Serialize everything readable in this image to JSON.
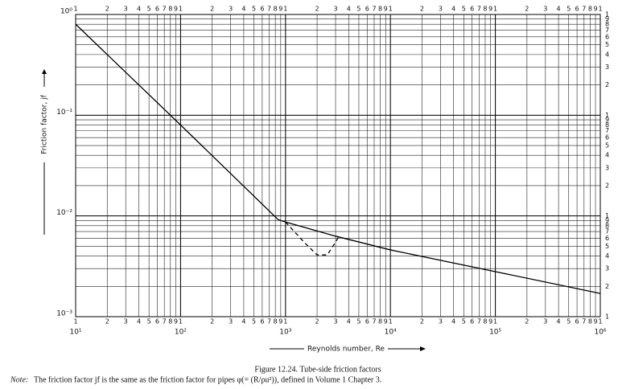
{
  "chart_data": {
    "type": "line",
    "xlabel": "Reynolds number, Re",
    "ylabel": "Friction factor, jf",
    "caption": "Figure 12.24.   Tube-side friction factors",
    "note_label": "Note:",
    "note": "The friction factor jf is the same as the friction factor for pipes φ(= (R/ρu²)), defined in Volume 1 Chapter 3.",
    "xlog": true,
    "ylog": true,
    "grid": true,
    "xlim": [
      10,
      1000000
    ],
    "ylim": [
      0.001,
      1
    ],
    "xticks": [
      {
        "value": 10,
        "label": "10¹"
      },
      {
        "value": 100,
        "label": "10²"
      },
      {
        "value": 1000,
        "label": "10³"
      },
      {
        "value": 10000,
        "label": "10⁴"
      },
      {
        "value": 100000,
        "label": "10⁵"
      },
      {
        "value": 1000000,
        "label": "10⁶"
      }
    ],
    "yticks": [
      {
        "value": 0.001,
        "label": "10⁻³"
      },
      {
        "value": 0.01,
        "label": "10⁻²"
      },
      {
        "value": 0.1,
        "label": "10⁻¹"
      },
      {
        "value": 1,
        "label": "10⁰"
      }
    ],
    "xminor": [
      {
        "value": 10,
        "label": "1"
      },
      {
        "value": 20,
        "label": "2"
      },
      {
        "value": 30,
        "label": "3"
      },
      {
        "value": 40,
        "label": "4"
      },
      {
        "value": 50,
        "label": "5"
      },
      {
        "value": 60,
        "label": "6"
      },
      {
        "value": 70,
        "label": "7"
      },
      {
        "value": 80,
        "label": "8"
      },
      {
        "value": 90,
        "label": "9"
      },
      {
        "value": 100,
        "label": "1"
      },
      {
        "value": 200,
        "label": "2"
      },
      {
        "value": 300,
        "label": "3"
      },
      {
        "value": 400,
        "label": "4"
      },
      {
        "value": 500,
        "label": "5"
      },
      {
        "value": 600,
        "label": "6"
      },
      {
        "value": 700,
        "label": "7"
      },
      {
        "value": 800,
        "label": "8"
      },
      {
        "value": 900,
        "label": "9"
      },
      {
        "value": 1000,
        "label": "1"
      },
      {
        "value": 2000,
        "label": "2"
      },
      {
        "value": 3000,
        "label": "3"
      },
      {
        "value": 4000,
        "label": "4"
      },
      {
        "value": 5000,
        "label": "5"
      },
      {
        "value": 6000,
        "label": "6"
      },
      {
        "value": 7000,
        "label": "7"
      },
      {
        "value": 8000,
        "label": "8"
      },
      {
        "value": 9000,
        "label": "9"
      },
      {
        "value": 10000,
        "label": "1"
      },
      {
        "value": 20000,
        "label": "2"
      },
      {
        "value": 30000,
        "label": "3"
      },
      {
        "value": 40000,
        "label": "4"
      },
      {
        "value": 50000,
        "label": "5"
      },
      {
        "value": 60000,
        "label": "6"
      },
      {
        "value": 70000,
        "label": "7"
      },
      {
        "value": 80000,
        "label": "8"
      },
      {
        "value": 90000,
        "label": "9"
      },
      {
        "value": 100000,
        "label": "1"
      },
      {
        "value": 200000,
        "label": "2"
      },
      {
        "value": 300000,
        "label": "3"
      },
      {
        "value": 400000,
        "label": "4"
      },
      {
        "value": 500000,
        "label": "5"
      },
      {
        "value": 600000,
        "label": "6"
      },
      {
        "value": 700000,
        "label": "7"
      },
      {
        "value": 800000,
        "label": "8"
      },
      {
        "value": 900000,
        "label": "9"
      },
      {
        "value": 1000000,
        "label": "1"
      }
    ],
    "yminor": [
      {
        "value": 0.001,
        "label": "1"
      },
      {
        "value": 0.002,
        "label": "2"
      },
      {
        "value": 0.003,
        "label": "3"
      },
      {
        "value": 0.004,
        "label": "4"
      },
      {
        "value": 0.005,
        "label": "5"
      },
      {
        "value": 0.006,
        "label": "6"
      },
      {
        "value": 0.007,
        "label": "7"
      },
      {
        "value": 0.008,
        "label": "8"
      },
      {
        "value": 0.009,
        "label": "9"
      },
      {
        "value": 0.01,
        "label": "1"
      },
      {
        "value": 0.02,
        "label": "2"
      },
      {
        "value": 0.03,
        "label": "3"
      },
      {
        "value": 0.04,
        "label": "4"
      },
      {
        "value": 0.05,
        "label": "5"
      },
      {
        "value": 0.06,
        "label": "6"
      },
      {
        "value": 0.07,
        "label": "7"
      },
      {
        "value": 0.08,
        "label": "8"
      },
      {
        "value": 0.09,
        "label": "9"
      },
      {
        "value": 0.1,
        "label": "1"
      },
      {
        "value": 0.2,
        "label": "2"
      },
      {
        "value": 0.3,
        "label": "3"
      },
      {
        "value": 0.4,
        "label": "4"
      },
      {
        "value": 0.5,
        "label": "5"
      },
      {
        "value": 0.6,
        "label": "6"
      },
      {
        "value": 0.7,
        "label": "7"
      },
      {
        "value": 0.8,
        "label": "8"
      },
      {
        "value": 0.9,
        "label": "9"
      },
      {
        "value": 1,
        "label": "1"
      }
    ],
    "series": [
      {
        "color": "#000000",
        "dashed": false,
        "x": [
          10,
          100,
          850,
          1000,
          3000,
          10000,
          100000,
          1000000
        ],
        "values": [
          0.8,
          0.08,
          0.0092,
          0.0087,
          0.0063,
          0.0046,
          0.0028,
          0.0017
        ]
      },
      {
        "color": "#000000",
        "dashed": true,
        "x": [
          1000,
          1500,
          2000,
          2500,
          3000,
          3300
        ],
        "values": [
          0.0087,
          0.0055,
          0.0041,
          0.0041,
          0.0055,
          0.0065
        ]
      }
    ]
  }
}
